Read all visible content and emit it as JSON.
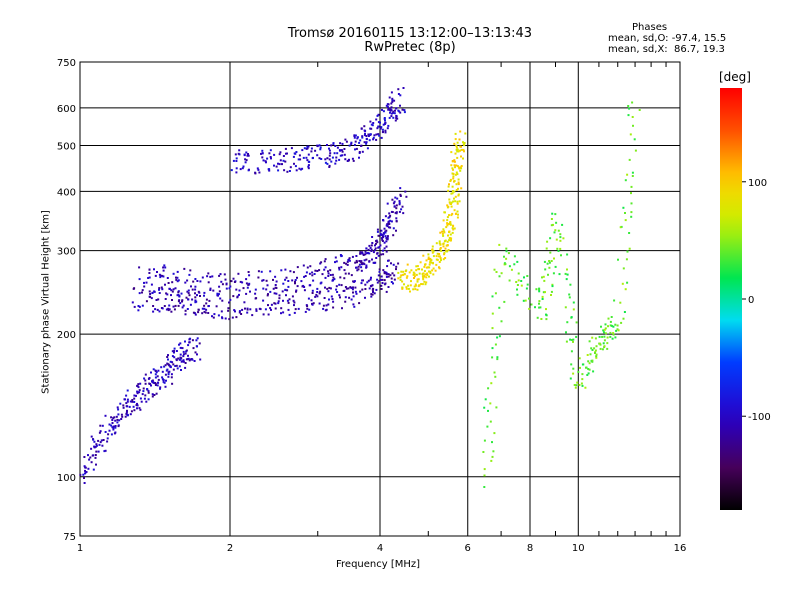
{
  "header": {
    "title": "Tromsø 20160115 13:12:00–13:13:43",
    "subtitle": "RwPretec (8p)"
  },
  "stats": {
    "heading": "Phases",
    "line_o": "mean, sd,O: -97.4, 15.5",
    "line_x": "mean, sd,X:  86.7, 19.3"
  },
  "colorbar": {
    "label": "[deg]",
    "range": [
      -180,
      180
    ],
    "ticks": [
      {
        "value": 100,
        "label": "100"
      },
      {
        "value": 0,
        "label": "0"
      },
      {
        "value": -100,
        "label": "-100"
      }
    ]
  },
  "chart_data": {
    "type": "scatter",
    "title": "Tromsø 20160115 13:12:00–13:13:43",
    "subtitle": "RwPretec (8p)",
    "xlabel": "Frequency [MHz]",
    "ylabel": "Stationary phase Virtual Height [km]",
    "x_scale": "log",
    "y_scale": "log",
    "xlim": [
      1,
      16
    ],
    "ylim": [
      75,
      750
    ],
    "x_ticks": [
      1,
      2,
      4,
      6,
      8,
      10,
      16
    ],
    "x_ticklabels": [
      "1",
      "2",
      "4",
      "6",
      "8",
      "10",
      "16"
    ],
    "y_ticks": [
      75,
      100,
      200,
      300,
      400,
      500,
      600,
      750
    ],
    "y_ticklabels": [
      "75",
      "100",
      "200",
      "300",
      "400",
      "500",
      "600",
      "750"
    ],
    "grid": true,
    "color_by": "phase_deg",
    "traces": [
      {
        "name_ref": "low_scatter_trace",
        "phase": -105,
        "points": [
          [
            1.0,
            100
          ],
          [
            1.1,
            118
          ],
          [
            1.2,
            135
          ],
          [
            1.3,
            148
          ],
          [
            1.4,
            158
          ],
          [
            1.5,
            168
          ],
          [
            1.6,
            180
          ],
          [
            1.7,
            188
          ]
        ]
      },
      {
        "name_ref": "f_layer_lower_trace",
        "phase": -110,
        "points": [
          [
            1.3,
            238
          ],
          [
            1.5,
            236
          ],
          [
            1.7,
            232
          ],
          [
            2.0,
            228
          ],
          [
            2.5,
            231
          ],
          [
            3.0,
            236
          ],
          [
            3.5,
            243
          ],
          [
            4.0,
            255
          ],
          [
            4.3,
            275
          ]
        ]
      },
      {
        "name_ref": "f_layer_upper_trace",
        "phase": -108,
        "points": [
          [
            1.35,
            268
          ],
          [
            1.6,
            258
          ],
          [
            2.0,
            254
          ],
          [
            2.5,
            258
          ],
          [
            3.0,
            268
          ],
          [
            3.5,
            280
          ],
          [
            3.8,
            290
          ],
          [
            4.0,
            310
          ],
          [
            4.2,
            345
          ],
          [
            4.4,
            400
          ]
        ]
      },
      {
        "name_ref": "e_echo_trace",
        "phase": -100,
        "points": [
          [
            2.0,
            460
          ],
          [
            2.4,
            462
          ],
          [
            2.8,
            468
          ],
          [
            3.2,
            478
          ],
          [
            3.6,
            495
          ],
          [
            3.9,
            530
          ],
          [
            4.2,
            580
          ],
          [
            4.4,
            630
          ]
        ]
      },
      {
        "name_ref": "x_mode_trace",
        "phase": 90,
        "points": [
          [
            4.4,
            256
          ],
          [
            4.7,
            265
          ],
          [
            5.0,
            275
          ],
          [
            5.3,
            295
          ],
          [
            5.5,
            330
          ],
          [
            5.6,
            380
          ],
          [
            5.7,
            450
          ],
          [
            5.8,
            520
          ]
        ]
      },
      {
        "name_ref": "sporadic_trace",
        "phase": 40,
        "points": [
          [
            6.5,
            95
          ],
          [
            7.0,
            300
          ],
          [
            8.5,
            220
          ],
          [
            9.0,
            350
          ],
          [
            10.0,
            160
          ],
          [
            11.0,
            190
          ],
          [
            12.0,
            210
          ],
          [
            13.0,
            650
          ]
        ]
      }
    ]
  }
}
